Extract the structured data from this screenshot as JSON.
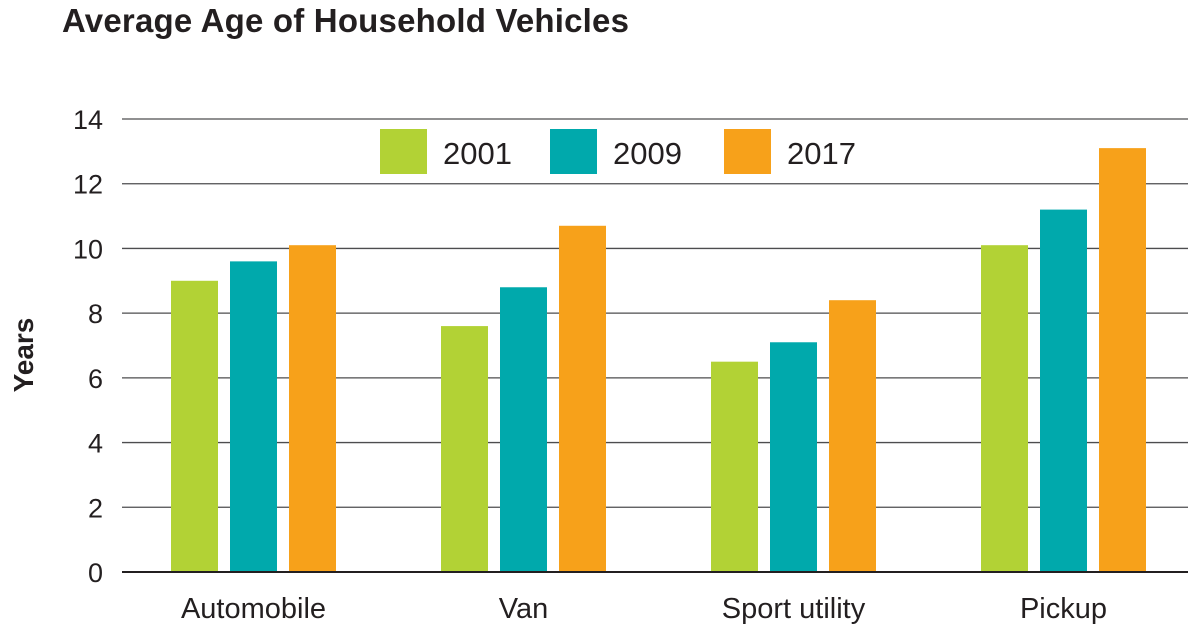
{
  "chart_data": {
    "type": "bar",
    "title": "Average Age of Household Vehicles",
    "xlabel": "",
    "ylabel": "Years",
    "ylim": [
      0,
      14
    ],
    "yticks": [
      0,
      2,
      4,
      6,
      8,
      10,
      12,
      14
    ],
    "grid": true,
    "legend_position": "top-center",
    "categories": [
      "Automobile",
      "Van",
      "Sport utility",
      "Pickup"
    ],
    "series": [
      {
        "name": "2001",
        "color": "#b2d235",
        "values": [
          9.0,
          7.6,
          6.5,
          10.1
        ]
      },
      {
        "name": "2009",
        "color": "#00a9ac",
        "values": [
          9.6,
          8.8,
          7.1,
          11.2
        ]
      },
      {
        "name": "2017",
        "color": "#f7a11a",
        "values": [
          10.1,
          10.7,
          8.4,
          13.1
        ]
      }
    ]
  }
}
